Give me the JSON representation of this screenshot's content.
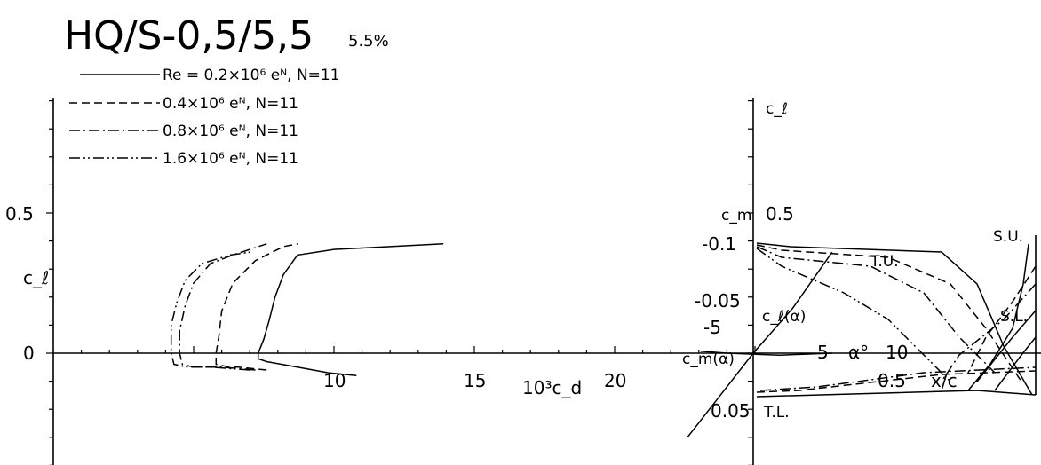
{
  "chart_data": [
    {
      "type": "line",
      "panel": "polar",
      "title": "HQ/S-0,5/5,5",
      "subtitle": "5.5%",
      "xlabel": "10³c_d",
      "ylabel": "c_ℓ",
      "xlim": [
        0,
        25
      ],
      "ylim": [
        -0.4,
        1.0
      ],
      "x_ticks": [
        10,
        15,
        20
      ],
      "y_ticks": [
        0,
        0.5
      ],
      "grid": false,
      "legend_position": "top-left",
      "series": [
        {
          "name": "Re = 0.2×10⁶ eᴺ, N=11",
          "dash": "solid",
          "cd": [
            10.8,
            9.8,
            8.7,
            7.6,
            7.3,
            7.3,
            7.5,
            7.7,
            7.9,
            8.2,
            8.7,
            10.0,
            12.0,
            13.9
          ],
          "cl": [
            -0.08,
            -0.07,
            -0.05,
            -0.03,
            -0.02,
            0.0,
            0.05,
            0.12,
            0.2,
            0.28,
            0.35,
            0.37,
            0.38,
            0.39
          ]
        },
        {
          "name": "0.4×10⁶ eᴺ, N=11",
          "dash": "dashed",
          "cd": [
            7.6,
            6.6,
            6.3,
            5.8,
            5.8,
            5.9,
            6.0,
            6.4,
            7.2,
            8.2,
            8.7
          ],
          "cl": [
            -0.06,
            -0.05,
            -0.05,
            -0.04,
            0.0,
            0.06,
            0.15,
            0.25,
            0.33,
            0.38,
            0.39
          ]
        },
        {
          "name": "0.8×10⁶ eᴺ, N=11",
          "dash": "dash-dot",
          "cd": [
            7.2,
            6.0,
            5.0,
            4.6,
            4.5,
            4.5,
            4.7,
            5.0,
            5.6,
            6.4,
            7.6
          ],
          "cl": [
            -0.06,
            -0.05,
            -0.05,
            -0.04,
            0.0,
            0.08,
            0.17,
            0.25,
            0.32,
            0.35,
            0.39
          ]
        },
        {
          "name": "1.6×10⁶ eᴺ, N=11",
          "dash": "dash-dot-dot",
          "cd": [
            7.0,
            5.6,
            4.8,
            4.3,
            4.2,
            4.2,
            4.4,
            4.7,
            5.3,
            6.3,
            7.0
          ],
          "cl": [
            -0.06,
            -0.05,
            -0.05,
            -0.04,
            0.0,
            0.1,
            0.18,
            0.26,
            0.32,
            0.35,
            0.36
          ]
        }
      ]
    },
    {
      "type": "line",
      "panel": "lift-curve",
      "ylabel": "c_ℓ",
      "xlabel": "α°",
      "curve_labels": [
        "c_ℓ(α)",
        "c_m(α)"
      ],
      "x_ticks": [
        -5,
        5,
        10
      ],
      "y_ticks": [
        0.5
      ],
      "cm_label": "c_m",
      "cm_ticks": [
        "-0.1",
        "-0.05",
        "0.05"
      ],
      "lift_alpha": [
        -5,
        -2,
        0,
        3,
        6
      ],
      "lift_cl": [
        -0.3,
        -0.12,
        0.0,
        0.16,
        0.36
      ],
      "moment_alpha": [
        -4,
        -2,
        0,
        2,
        4,
        6
      ],
      "moment_cm": [
        -0.002,
        0.0,
        0.001,
        0.002,
        0.001,
        0.0
      ]
    },
    {
      "type": "line",
      "panel": "transition",
      "xlabel": "x/c",
      "x_ticks": [
        0.5
      ],
      "labels": {
        "top_upper": "T.U.",
        "separation_upper": "S.U.",
        "separation_lower": "S.L.",
        "top_lower": "T.L."
      }
    }
  ]
}
